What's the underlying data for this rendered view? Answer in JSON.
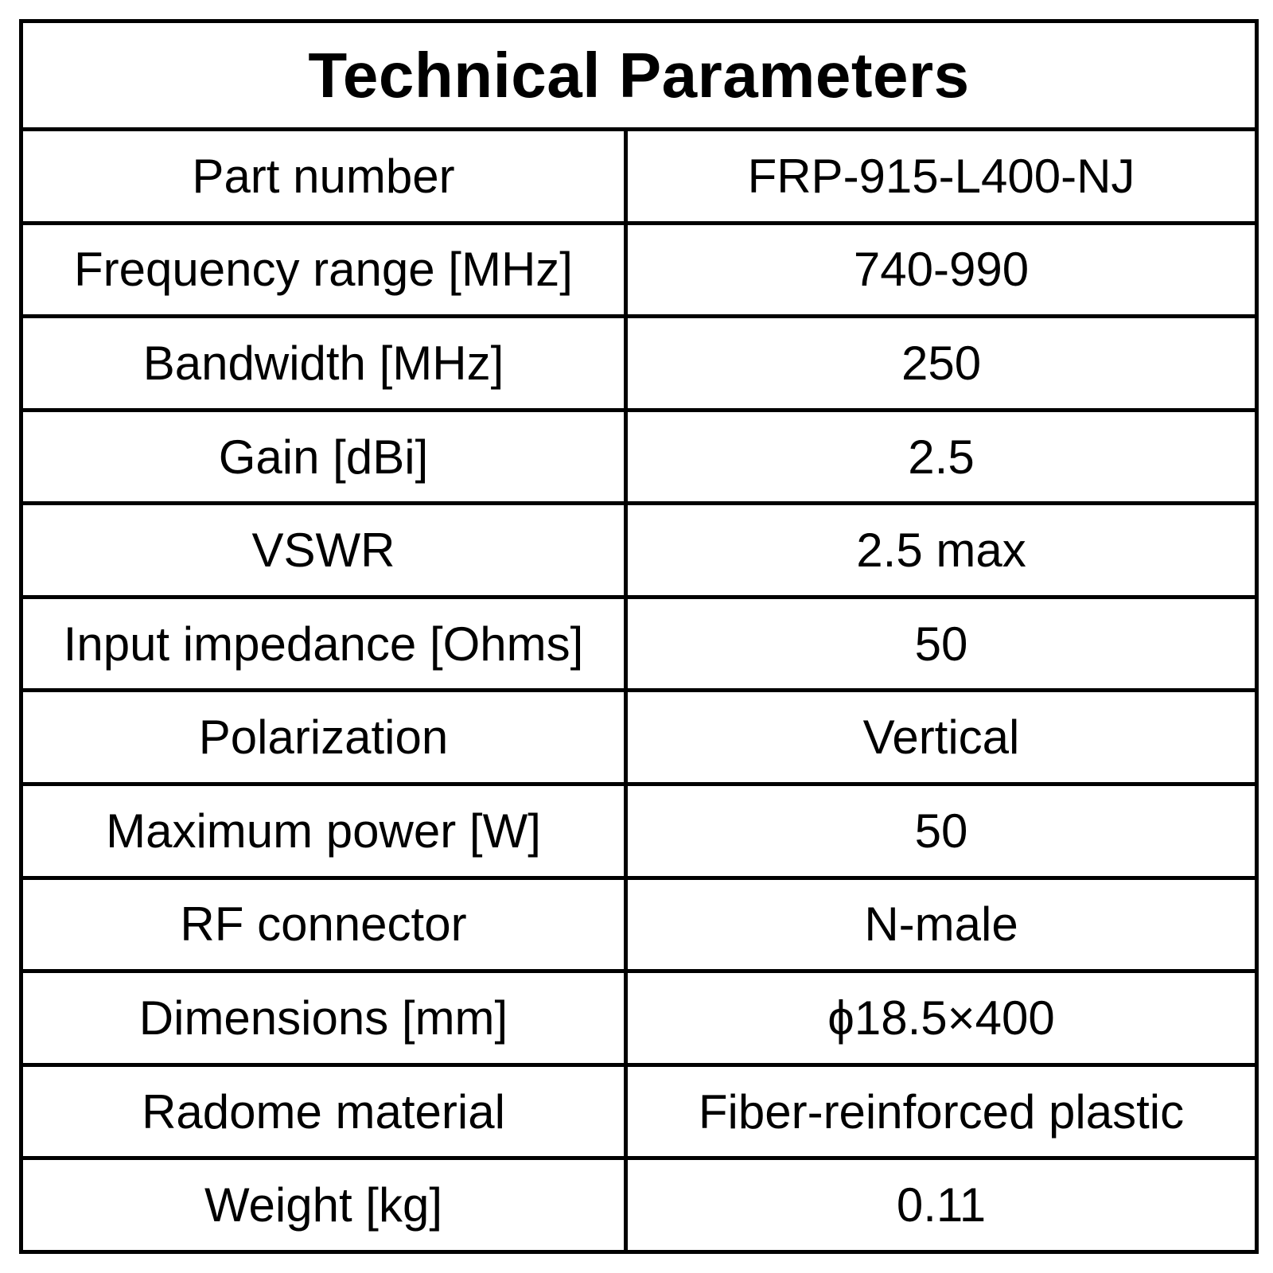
{
  "title": "Technical Parameters",
  "rows": [
    {
      "label": "Part number",
      "value": "FRP-915-L400-NJ"
    },
    {
      "label": "Frequency range [MHz]",
      "value": "740-990"
    },
    {
      "label": "Bandwidth [MHz]",
      "value": "250"
    },
    {
      "label": "Gain [dBi]",
      "value": "2.5"
    },
    {
      "label": "VSWR",
      "value": "2.5 max"
    },
    {
      "label": "Input impedance [Ohms]",
      "value": "50"
    },
    {
      "label": "Polarization",
      "value": "Vertical"
    },
    {
      "label": "Maximum power [W]",
      "value": "50"
    },
    {
      "label": "RF connector",
      "value": "N-male"
    },
    {
      "label": "Dimensions [mm]",
      "value": "ϕ18.5×400"
    },
    {
      "label": "Radome material",
      "value": "Fiber-reinforced plastic"
    },
    {
      "label": "Weight [kg]",
      "value": "0.11"
    }
  ]
}
